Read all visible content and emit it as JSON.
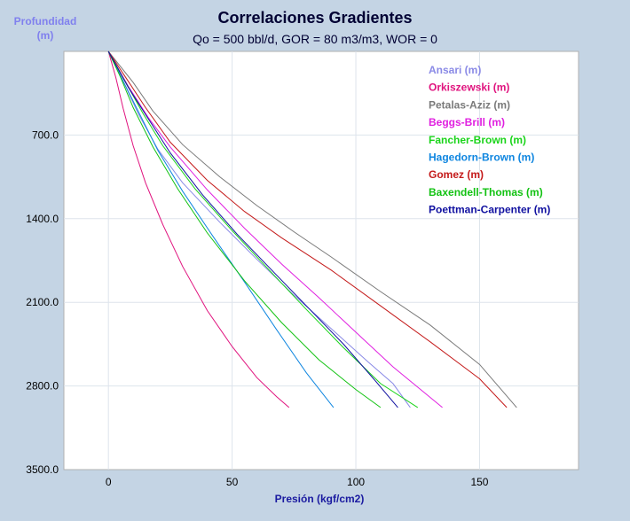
{
  "chart_data": {
    "type": "line",
    "title": "Correlaciones Gradientes",
    "subtitle": "Qo = 500 bbl/d, GOR = 80 m3/m3, WOR = 0",
    "ylabel_line1": "Profundidad",
    "ylabel_line2": "(m)",
    "xlabel": "Presión (kgf/cm2)",
    "xlim": [
      -18,
      190
    ],
    "ylim": [
      0,
      3500
    ],
    "y_inverted": true,
    "x_ticks": [
      0,
      50,
      100,
      150
    ],
    "x_tick_labels": [
      "0",
      "50",
      "100",
      "150"
    ],
    "y_ticks": [
      700,
      1400,
      2100,
      2800,
      3500
    ],
    "y_tick_labels": [
      "700.0",
      "1400.0",
      "2100.0",
      "2800.0",
      "3500.0"
    ],
    "grid": true,
    "legend_position": "top-right",
    "series": [
      {
        "name": "Ansari (m)",
        "color": "#8a8ae6",
        "x": [
          0,
          6,
          12,
          20,
          30,
          45,
          60,
          75,
          90,
          105,
          115,
          122
        ],
        "y": [
          0,
          250,
          520,
          820,
          1100,
          1430,
          1740,
          2040,
          2320,
          2600,
          2780,
          2980
        ]
      },
      {
        "name": "Orkiszewski (m)",
        "color": "#e0137e",
        "x": [
          0,
          3,
          6,
          10,
          15,
          22,
          30,
          40,
          50,
          60,
          68,
          73
        ],
        "y": [
          0,
          220,
          480,
          790,
          1100,
          1450,
          1800,
          2170,
          2470,
          2730,
          2890,
          2980
        ]
      },
      {
        "name": "Petalas-Aziz (m)",
        "color": "#7a7a7a",
        "x": [
          0,
          10,
          18,
          30,
          45,
          60,
          75,
          90,
          110,
          130,
          150,
          165
        ],
        "y": [
          0,
          260,
          500,
          780,
          1050,
          1290,
          1510,
          1720,
          2010,
          2290,
          2620,
          2980
        ]
      },
      {
        "name": "Beggs-Brill (m)",
        "color": "#e020e0",
        "x": [
          0,
          8,
          16,
          25,
          40,
          55,
          70,
          85,
          100,
          115,
          135
        ],
        "y": [
          0,
          290,
          550,
          800,
          1160,
          1480,
          1780,
          2060,
          2350,
          2640,
          2980
        ]
      },
      {
        "name": "Fancher-Brown (m)",
        "color": "#1ad41a",
        "x": [
          0,
          7,
          14,
          22,
          35,
          50,
          65,
          80,
          95,
          110,
          125
        ],
        "y": [
          0,
          260,
          520,
          790,
          1150,
          1500,
          1830,
          2160,
          2480,
          2780,
          2980
        ]
      },
      {
        "name": "Hagedorn-Brown (m)",
        "color": "#0f86e0",
        "x": [
          0,
          5,
          12,
          20,
          30,
          42,
          55,
          68,
          80,
          91
        ],
        "y": [
          0,
          210,
          500,
          830,
          1170,
          1540,
          1930,
          2330,
          2690,
          2980
        ]
      },
      {
        "name": "Gomez (m)",
        "color": "#c41a1a",
        "x": [
          0,
          8,
          15,
          25,
          40,
          55,
          70,
          90,
          110,
          130,
          150,
          161
        ],
        "y": [
          0,
          250,
          470,
          760,
          1080,
          1340,
          1560,
          1830,
          2130,
          2430,
          2740,
          2980
        ]
      },
      {
        "name": "Baxendell-Thomas (m)",
        "color": "#12c212",
        "x": [
          0,
          5,
          10,
          18,
          28,
          40,
          55,
          70,
          85,
          100,
          110
        ],
        "y": [
          0,
          220,
          470,
          800,
          1150,
          1520,
          1920,
          2270,
          2580,
          2830,
          2980
        ]
      },
      {
        "name": "Poettman-Carpenter (m)",
        "color": "#1010a0",
        "x": [
          0,
          8,
          16,
          25,
          38,
          52,
          66,
          80,
          95,
          108,
          117
        ],
        "y": [
          0,
          300,
          560,
          850,
          1200,
          1530,
          1830,
          2130,
          2450,
          2760,
          2980
        ]
      }
    ]
  }
}
